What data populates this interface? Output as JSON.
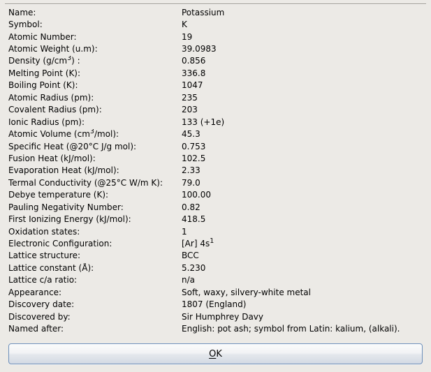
{
  "dialog": {
    "background_color": "#ECEAE6",
    "ok_button": {
      "label": "OK",
      "mnemonic": "O",
      "rest": "K",
      "border_color": "#6D8FBA"
    }
  },
  "properties": {
    "rows": [
      {
        "label": "Name:",
        "value": "Potassium"
      },
      {
        "label": "Symbol:",
        "value": "K"
      },
      {
        "label": "Atomic Number:",
        "value": "19"
      },
      {
        "label": "Atomic Weight (u.m):",
        "value": "39.0983"
      },
      {
        "label": "Density (g/cm³) :",
        "value": "0.856"
      },
      {
        "label": "Melting Point (K):",
        "value": "336.8"
      },
      {
        "label": "Boiling Point (K):",
        "value": "1047"
      },
      {
        "label": "Atomic Radius (pm):",
        "value": "235"
      },
      {
        "label": "Covalent Radius (pm):",
        "value": "203"
      },
      {
        "label": "Ionic Radius (pm):",
        "value": "133 (+1e)"
      },
      {
        "label": "Atomic Volume (cm³/mol):",
        "value": "45.3"
      },
      {
        "label": "Specific Heat (@20°C J/g mol):",
        "value": "0.753"
      },
      {
        "label": "Fusion Heat (kJ/mol):",
        "value": "102.5"
      },
      {
        "label": "Evaporation Heat (kJ/mol):",
        "value": "2.33"
      },
      {
        "label": "Termal Conductivity (@25°C W/m K):",
        "value": "79.0"
      },
      {
        "label": "Debye temperature (K):",
        "value": "100.00"
      },
      {
        "label": "Pauling Negativity Number:",
        "value": "0.82"
      },
      {
        "label": "First Ionizing Energy (kJ/mol):",
        "value": "418.5"
      },
      {
        "label": "Oxidation states:",
        "value": "1"
      },
      {
        "label": "Electronic Configuration:",
        "value": "[Ar] 4s¹"
      },
      {
        "label": "Lattice structure:",
        "value": "BCC"
      },
      {
        "label": "Lattice constant (Å):",
        "value": "5.230"
      },
      {
        "label": "Lattice c/a ratio:",
        "value": "n/a"
      },
      {
        "label": "Appearance:",
        "value": "Soft, waxy, silvery-white metal"
      },
      {
        "label": "Discovery date:",
        "value": "1807 (England)"
      },
      {
        "label": "Discovered by:",
        "value": "Sir Humphrey Davy"
      },
      {
        "label": "Named after:",
        "value": "English: pot ash; symbol from Latin: kalium, (alkali)."
      }
    ]
  }
}
